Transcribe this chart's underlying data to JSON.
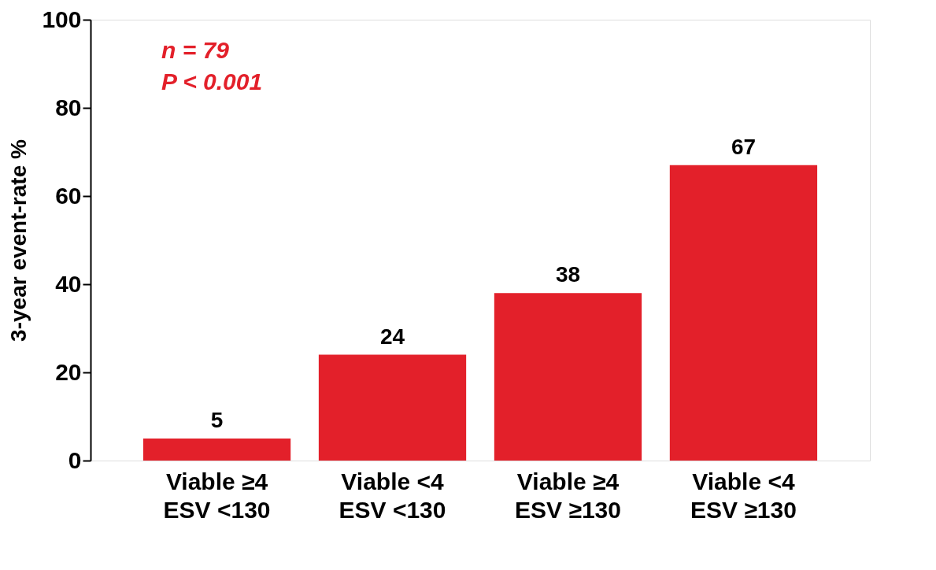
{
  "chart_data": {
    "type": "bar",
    "ylabel": "3-year event-rate %",
    "categories": [
      "Viable ≥4\nESV <130",
      "Viable <4\nESV <130",
      "Viable ≥4\nESV ≥130",
      "Viable <4\nESV ≥130"
    ],
    "values": [
      5,
      24,
      38,
      67
    ],
    "color": "#e3202a",
    "ylim": [
      0,
      100
    ],
    "yticks": [
      0,
      20,
      40,
      60,
      80,
      100
    ],
    "grid": false,
    "data_labels": true,
    "annotations": [
      "n = 79",
      "P < 0.001"
    ]
  }
}
